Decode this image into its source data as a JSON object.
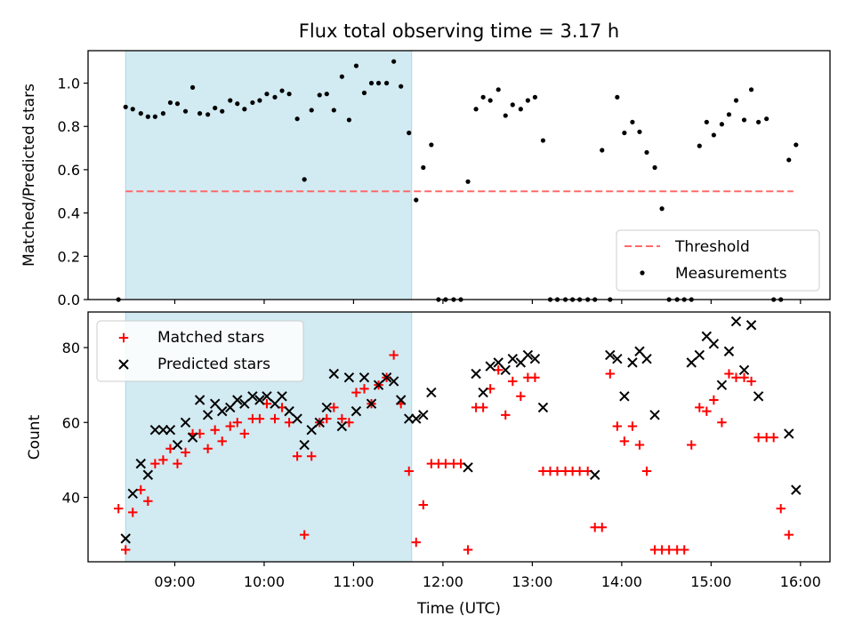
{
  "title": "Flux total observing time = 3.17 h",
  "colors": {
    "shade": "#add8e6",
    "threshold": "#ff6b6b",
    "measurement": "#000000",
    "matched": "#ff0000",
    "predicted": "#000000"
  },
  "chart_data": [
    {
      "type": "scatter",
      "name": "ratio",
      "ylabel": "Matched/Predicted stars",
      "xlim": [
        8.03,
        16.33
      ],
      "ylim": [
        0,
        1.15
      ],
      "yticks": [
        0.0,
        0.2,
        0.4,
        0.6,
        0.8,
        1.0
      ],
      "ytick_labels": [
        "0.0",
        "0.2",
        "0.4",
        "0.6",
        "0.8",
        "1.0"
      ],
      "shaded_interval": [
        8.45,
        11.65
      ],
      "threshold": {
        "label": "Threshold",
        "y": 0.5,
        "x": [
          8.45,
          15.92
        ],
        "style": "dashed"
      },
      "legend": {
        "position": "lower-right",
        "entries": [
          "Threshold",
          "Measurements"
        ]
      },
      "series": [
        {
          "name": "Measurements",
          "marker": "dot",
          "points": [
            [
              8.37,
              0
            ],
            [
              8.45,
              0.89
            ],
            [
              8.53,
              0.88
            ],
            [
              8.62,
              0.86
            ],
            [
              8.7,
              0.845
            ],
            [
              8.78,
              0.845
            ],
            [
              8.87,
              0.86
            ],
            [
              8.95,
              0.91
            ],
            [
              9.03,
              0.905
            ],
            [
              9.12,
              0.87
            ],
            [
              9.2,
              0.98
            ],
            [
              9.28,
              0.86
            ],
            [
              9.37,
              0.855
            ],
            [
              9.45,
              0.885
            ],
            [
              9.53,
              0.87
            ],
            [
              9.62,
              0.92
            ],
            [
              9.7,
              0.905
            ],
            [
              9.78,
              0.88
            ],
            [
              9.87,
              0.91
            ],
            [
              9.95,
              0.92
            ],
            [
              10.03,
              0.95
            ],
            [
              10.12,
              0.935
            ],
            [
              10.2,
              0.965
            ],
            [
              10.28,
              0.95
            ],
            [
              10.37,
              0.835
            ],
            [
              10.45,
              0.555
            ],
            [
              10.53,
              0.875
            ],
            [
              10.62,
              0.945
            ],
            [
              10.7,
              0.95
            ],
            [
              10.78,
              0.875
            ],
            [
              10.87,
              1.03
            ],
            [
              10.95,
              0.83
            ],
            [
              11.03,
              1.08
            ],
            [
              11.12,
              0.955
            ],
            [
              11.2,
              1.0
            ],
            [
              11.28,
              1.0
            ],
            [
              11.37,
              1.0
            ],
            [
              11.45,
              1.1
            ],
            [
              11.53,
              0.985
            ],
            [
              11.62,
              0.77
            ],
            [
              11.7,
              0.46
            ],
            [
              11.78,
              0.61
            ],
            [
              11.87,
              0.715
            ],
            [
              11.95,
              0
            ],
            [
              12.03,
              0
            ],
            [
              12.12,
              0
            ],
            [
              12.2,
              0
            ],
            [
              12.28,
              0.545
            ],
            [
              12.37,
              0.88
            ],
            [
              12.45,
              0.935
            ],
            [
              12.53,
              0.92
            ],
            [
              12.62,
              0.97
            ],
            [
              12.7,
              0.85
            ],
            [
              12.78,
              0.9
            ],
            [
              12.87,
              0.88
            ],
            [
              12.95,
              0.92
            ],
            [
              13.03,
              0.935
            ],
            [
              13.12,
              0.735
            ],
            [
              13.2,
              0
            ],
            [
              13.28,
              0
            ],
            [
              13.37,
              0
            ],
            [
              13.45,
              0
            ],
            [
              13.53,
              0
            ],
            [
              13.62,
              0
            ],
            [
              13.7,
              0
            ],
            [
              13.78,
              0.69
            ],
            [
              13.87,
              0
            ],
            [
              13.95,
              0.935
            ],
            [
              14.03,
              0.77
            ],
            [
              14.12,
              0.82
            ],
            [
              14.2,
              0.775
            ],
            [
              14.28,
              0.68
            ],
            [
              14.37,
              0.61
            ],
            [
              14.45,
              0.42
            ],
            [
              14.53,
              0
            ],
            [
              14.62,
              0
            ],
            [
              14.7,
              0
            ],
            [
              14.78,
              0
            ],
            [
              14.87,
              0.71
            ],
            [
              14.95,
              0.82
            ],
            [
              15.03,
              0.76
            ],
            [
              15.12,
              0.81
            ],
            [
              15.2,
              0.855
            ],
            [
              15.28,
              0.92
            ],
            [
              15.37,
              0.83
            ],
            [
              15.45,
              0.97
            ],
            [
              15.53,
              0.82
            ],
            [
              15.62,
              0.835
            ],
            [
              15.7,
              0
            ],
            [
              15.78,
              0
            ],
            [
              15.87,
              0.645
            ],
            [
              15.95,
              0.715
            ]
          ]
        }
      ]
    },
    {
      "type": "scatter",
      "name": "counts",
      "xlabel": "Time (UTC)",
      "ylabel": "Count",
      "xlim": [
        8.03,
        16.33
      ],
      "ylim": [
        22.8,
        89.5
      ],
      "yticks": [
        40,
        60,
        80
      ],
      "ytick_labels": [
        "40",
        "60",
        "80"
      ],
      "xticks": [
        9,
        10,
        11,
        12,
        13,
        14,
        15,
        16
      ],
      "xtick_labels": [
        "09:00",
        "10:00",
        "11:00",
        "12:00",
        "13:00",
        "14:00",
        "15:00",
        "16:00"
      ],
      "shaded_interval": [
        8.45,
        11.65
      ],
      "legend": {
        "position": "upper-left",
        "entries": [
          "Matched stars",
          "Predicted stars"
        ]
      },
      "series": [
        {
          "name": "Matched stars",
          "marker": "plus",
          "points": [
            [
              8.37,
              37
            ],
            [
              8.45,
              26
            ],
            [
              8.53,
              36
            ],
            [
              8.62,
              42
            ],
            [
              8.7,
              39
            ],
            [
              8.78,
              49
            ],
            [
              8.87,
              50
            ],
            [
              8.95,
              53
            ],
            [
              9.03,
              49
            ],
            [
              9.12,
              52
            ],
            [
              9.2,
              57
            ],
            [
              9.28,
              57
            ],
            [
              9.37,
              53
            ],
            [
              9.45,
              58
            ],
            [
              9.53,
              55
            ],
            [
              9.62,
              59
            ],
            [
              9.7,
              60
            ],
            [
              9.78,
              57
            ],
            [
              9.87,
              61
            ],
            [
              9.95,
              61
            ],
            [
              10.03,
              65
            ],
            [
              10.12,
              61
            ],
            [
              10.2,
              64
            ],
            [
              10.28,
              60
            ],
            [
              10.37,
              51
            ],
            [
              10.45,
              30
            ],
            [
              10.53,
              51
            ],
            [
              10.62,
              60
            ],
            [
              10.7,
              61
            ],
            [
              10.78,
              64
            ],
            [
              10.87,
              61
            ],
            [
              10.95,
              60
            ],
            [
              11.03,
              68
            ],
            [
              11.12,
              69
            ],
            [
              11.2,
              65
            ],
            [
              11.28,
              70
            ],
            [
              11.37,
              72
            ],
            [
              11.45,
              78
            ],
            [
              11.53,
              65
            ],
            [
              11.62,
              47
            ],
            [
              11.7,
              28
            ],
            [
              11.78,
              38
            ],
            [
              11.87,
              49
            ],
            [
              11.95,
              49
            ],
            [
              12.03,
              49
            ],
            [
              12.12,
              49
            ],
            [
              12.2,
              49
            ],
            [
              12.28,
              26
            ],
            [
              12.37,
              64
            ],
            [
              12.45,
              64
            ],
            [
              12.53,
              69
            ],
            [
              12.62,
              74
            ],
            [
              12.7,
              62
            ],
            [
              12.78,
              71
            ],
            [
              12.87,
              67
            ],
            [
              12.95,
              72
            ],
            [
              13.03,
              72
            ],
            [
              13.12,
              47
            ],
            [
              13.2,
              47
            ],
            [
              13.28,
              47
            ],
            [
              13.37,
              47
            ],
            [
              13.45,
              47
            ],
            [
              13.53,
              47
            ],
            [
              13.62,
              47
            ],
            [
              13.7,
              32
            ],
            [
              13.78,
              32
            ],
            [
              13.87,
              73
            ],
            [
              13.95,
              59
            ],
            [
              14.03,
              55
            ],
            [
              14.12,
              59
            ],
            [
              14.2,
              54
            ],
            [
              14.28,
              47
            ],
            [
              14.37,
              26
            ],
            [
              14.45,
              26
            ],
            [
              14.53,
              26
            ],
            [
              14.62,
              26
            ],
            [
              14.7,
              26
            ],
            [
              14.78,
              54
            ],
            [
              14.87,
              64
            ],
            [
              14.95,
              63
            ],
            [
              15.03,
              66
            ],
            [
              15.12,
              60
            ],
            [
              15.2,
              73
            ],
            [
              15.28,
              72
            ],
            [
              15.37,
              72
            ],
            [
              15.45,
              71
            ],
            [
              15.53,
              56
            ],
            [
              15.62,
              56
            ],
            [
              15.7,
              56
            ],
            [
              15.78,
              37
            ],
            [
              15.87,
              30
            ]
          ]
        },
        {
          "name": "Predicted stars",
          "marker": "x",
          "points": [
            [
              8.45,
              29
            ],
            [
              8.53,
              41
            ],
            [
              8.62,
              49
            ],
            [
              8.7,
              46
            ],
            [
              8.78,
              58
            ],
            [
              8.87,
              58
            ],
            [
              8.95,
              58
            ],
            [
              9.03,
              54
            ],
            [
              9.12,
              60
            ],
            [
              9.2,
              56
            ],
            [
              9.28,
              66
            ],
            [
              9.37,
              62
            ],
            [
              9.45,
              65
            ],
            [
              9.53,
              63
            ],
            [
              9.62,
              64
            ],
            [
              9.7,
              66
            ],
            [
              9.78,
              65
            ],
            [
              9.87,
              67
            ],
            [
              9.95,
              66
            ],
            [
              10.03,
              67
            ],
            [
              10.12,
              65
            ],
            [
              10.2,
              67
            ],
            [
              10.28,
              63
            ],
            [
              10.37,
              61
            ],
            [
              10.45,
              54
            ],
            [
              10.53,
              58
            ],
            [
              10.62,
              60
            ],
            [
              10.7,
              64
            ],
            [
              10.78,
              73
            ],
            [
              10.87,
              59
            ],
            [
              10.95,
              72
            ],
            [
              11.03,
              63
            ],
            [
              11.12,
              72
            ],
            [
              11.2,
              65
            ],
            [
              11.28,
              70
            ],
            [
              11.37,
              72
            ],
            [
              11.45,
              71
            ],
            [
              11.53,
              66
            ],
            [
              11.62,
              61
            ],
            [
              11.7,
              61
            ],
            [
              11.78,
              62
            ],
            [
              11.87,
              68
            ],
            [
              12.28,
              48
            ],
            [
              12.37,
              73
            ],
            [
              12.45,
              68
            ],
            [
              12.53,
              75
            ],
            [
              12.62,
              76
            ],
            [
              12.7,
              74
            ],
            [
              12.78,
              77
            ],
            [
              12.87,
              76
            ],
            [
              12.95,
              78
            ],
            [
              13.03,
              77
            ],
            [
              13.12,
              64
            ],
            [
              13.7,
              46
            ],
            [
              13.87,
              78
            ],
            [
              13.95,
              77
            ],
            [
              14.03,
              67
            ],
            [
              14.12,
              76
            ],
            [
              14.2,
              79
            ],
            [
              14.28,
              77
            ],
            [
              14.37,
              62
            ],
            [
              14.78,
              76
            ],
            [
              14.87,
              78
            ],
            [
              14.95,
              83
            ],
            [
              15.03,
              81
            ],
            [
              15.12,
              70
            ],
            [
              15.2,
              79
            ],
            [
              15.28,
              87
            ],
            [
              15.37,
              74
            ],
            [
              15.45,
              86
            ],
            [
              15.53,
              67
            ],
            [
              15.87,
              57
            ],
            [
              15.95,
              42
            ]
          ]
        }
      ]
    }
  ]
}
